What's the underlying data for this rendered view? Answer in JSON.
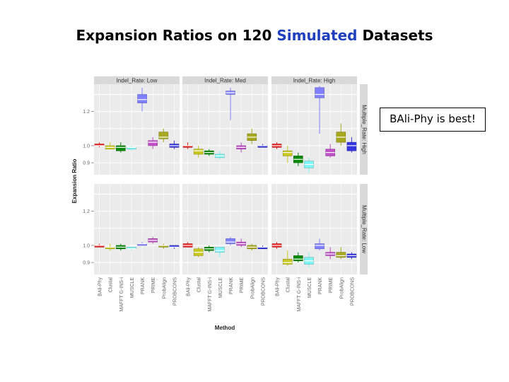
{
  "slide": {
    "title_pre": "Expansion Ratios on 120 ",
    "title_highlight": "Simulated",
    "title_post": " Datasets",
    "highlight_color": "#1f3fbf",
    "callout": "BAli-Phy is best!"
  },
  "chart_data": {
    "type": "box",
    "xlabel": "Method",
    "ylabel": "Expansion Ratio",
    "ylim": [
      0.83,
      1.36
    ],
    "yticks": [
      0.9,
      1.0,
      1.2
    ],
    "ytick_labels": [
      "0.9",
      "1.0",
      "1.2"
    ],
    "methods": [
      "BAli-Phy",
      "Clustal",
      "MAFFT G-INS-i",
      "MUSCLE",
      "PRANK",
      "PRIME",
      "ProbAlign",
      "PROBCONS"
    ],
    "method_colors": [
      "#e81f1f",
      "#c8c820",
      "#0a8a0a",
      "#7ff5f5",
      "#8080ff",
      "#c050c8",
      "#a8a820",
      "#3535e0"
    ],
    "col_facets": [
      "Indel_Rate: Low",
      "Indel_Rate: Med",
      "Indel_Rate: High"
    ],
    "row_facets": [
      "Multiple_Rate: High",
      "Multiple_Rate: Low"
    ],
    "panels": [
      [
        [
          {
            "lo": 0.99,
            "q1": 1.0,
            "med": 1.0,
            "q3": 1.01,
            "hi": 1.02
          },
          {
            "lo": 0.98,
            "q1": 0.98,
            "med": 0.99,
            "q3": 1.0,
            "hi": 1.02
          },
          {
            "lo": 0.96,
            "q1": 0.97,
            "med": 0.99,
            "q3": 1.0,
            "hi": 1.02
          },
          {
            "lo": 0.97,
            "q1": 0.98,
            "med": 0.99,
            "q3": 0.99,
            "hi": 1.0
          },
          {
            "lo": 1.2,
            "q1": 1.25,
            "med": 1.27,
            "q3": 1.3,
            "hi": 1.34
          },
          {
            "lo": 0.98,
            "q1": 1.0,
            "med": 1.02,
            "q3": 1.03,
            "hi": 1.05
          },
          {
            "lo": 1.02,
            "q1": 1.04,
            "med": 1.05,
            "q3": 1.08,
            "hi": 1.1
          },
          {
            "lo": 0.98,
            "q1": 0.99,
            "med": 1.0,
            "q3": 1.01,
            "hi": 1.03
          }
        ],
        [
          {
            "lo": 0.98,
            "q1": 0.99,
            "med": 1.0,
            "q3": 1.0,
            "hi": 1.02
          },
          {
            "lo": 0.93,
            "q1": 0.95,
            "med": 0.97,
            "q3": 0.98,
            "hi": 1.0
          },
          {
            "lo": 0.94,
            "q1": 0.95,
            "med": 0.96,
            "q3": 0.97,
            "hi": 0.98
          },
          {
            "lo": 0.92,
            "q1": 0.93,
            "med": 0.94,
            "q3": 0.95,
            "hi": 0.97
          },
          {
            "lo": 1.15,
            "q1": 1.3,
            "med": 1.31,
            "q3": 1.32,
            "hi": 1.34
          },
          {
            "lo": 0.96,
            "q1": 0.98,
            "med": 0.99,
            "q3": 1.0,
            "hi": 1.02
          },
          {
            "lo": 1.01,
            "q1": 1.03,
            "med": 1.05,
            "q3": 1.07,
            "hi": 1.1
          },
          {
            "lo": 0.99,
            "q1": 0.99,
            "med": 1.0,
            "q3": 1.0,
            "hi": 1.01
          }
        ],
        [
          {
            "lo": 0.98,
            "q1": 0.99,
            "med": 1.0,
            "q3": 1.01,
            "hi": 1.02
          },
          {
            "lo": 0.9,
            "q1": 0.94,
            "med": 0.96,
            "q3": 0.97,
            "hi": 1.0
          },
          {
            "lo": 0.88,
            "q1": 0.9,
            "med": 0.92,
            "q3": 0.94,
            "hi": 0.96
          },
          {
            "lo": 0.84,
            "q1": 0.87,
            "med": 0.89,
            "q3": 0.91,
            "hi": 0.93
          },
          {
            "lo": 1.07,
            "q1": 1.28,
            "med": 1.3,
            "q3": 1.34,
            "hi": 1.35
          },
          {
            "lo": 0.93,
            "q1": 0.94,
            "med": 0.96,
            "q3": 0.98,
            "hi": 1.01
          },
          {
            "lo": 1.0,
            "q1": 1.02,
            "med": 1.05,
            "q3": 1.08,
            "hi": 1.13
          },
          {
            "lo": 0.96,
            "q1": 0.97,
            "med": 1.0,
            "q3": 1.02,
            "hi": 1.05
          }
        ]
      ],
      [
        [
          {
            "lo": 0.99,
            "q1": 0.99,
            "med": 1.0,
            "q3": 1.0,
            "hi": 1.01
          },
          {
            "lo": 0.97,
            "q1": 0.98,
            "med": 0.99,
            "q3": 0.99,
            "hi": 1.01
          },
          {
            "lo": 0.97,
            "q1": 0.98,
            "med": 0.99,
            "q3": 1.0,
            "hi": 1.01
          },
          {
            "lo": 0.97,
            "q1": 0.98,
            "med": 0.98,
            "q3": 0.99,
            "hi": 0.99
          },
          {
            "lo": 1.0,
            "q1": 1.0,
            "med": 1.01,
            "q3": 1.01,
            "hi": 1.02
          },
          {
            "lo": 1.01,
            "q1": 1.02,
            "med": 1.03,
            "q3": 1.04,
            "hi": 1.05
          },
          {
            "lo": 0.98,
            "q1": 0.99,
            "med": 1.0,
            "q3": 1.0,
            "hi": 1.01
          },
          {
            "lo": 0.98,
            "q1": 0.99,
            "med": 0.99,
            "q3": 1.0,
            "hi": 1.0
          }
        ],
        [
          {
            "lo": 0.99,
            "q1": 0.99,
            "med": 1.0,
            "q3": 1.01,
            "hi": 1.02
          },
          {
            "lo": 0.93,
            "q1": 0.94,
            "med": 0.96,
            "q3": 0.98,
            "hi": 0.99
          },
          {
            "lo": 0.96,
            "q1": 0.97,
            "med": 0.98,
            "q3": 0.99,
            "hi": 1.0
          },
          {
            "lo": 0.93,
            "q1": 0.96,
            "med": 0.97,
            "q3": 0.99,
            "hi": 0.99
          },
          {
            "lo": 1.0,
            "q1": 1.01,
            "med": 1.02,
            "q3": 1.04,
            "hi": 1.05
          },
          {
            "lo": 0.99,
            "q1": 1.0,
            "med": 1.01,
            "q3": 1.02,
            "hi": 1.04
          },
          {
            "lo": 0.97,
            "q1": 0.98,
            "med": 0.99,
            "q3": 1.0,
            "hi": 1.01
          },
          {
            "lo": 0.98,
            "q1": 0.98,
            "med": 0.99,
            "q3": 0.99,
            "hi": 1.0
          }
        ],
        [
          {
            "lo": 0.98,
            "q1": 0.99,
            "med": 1.0,
            "q3": 1.01,
            "hi": 1.02
          },
          {
            "lo": 0.88,
            "q1": 0.89,
            "med": 0.9,
            "q3": 0.92,
            "hi": 0.97
          },
          {
            "lo": 0.9,
            "q1": 0.91,
            "med": 0.92,
            "q3": 0.94,
            "hi": 0.96
          },
          {
            "lo": 0.87,
            "q1": 0.89,
            "med": 0.91,
            "q3": 0.93,
            "hi": 0.96
          },
          {
            "lo": 0.97,
            "q1": 0.98,
            "med": 1.0,
            "q3": 1.01,
            "hi": 1.04
          },
          {
            "lo": 0.92,
            "q1": 0.94,
            "med": 0.95,
            "q3": 0.96,
            "hi": 0.99
          },
          {
            "lo": 0.92,
            "q1": 0.93,
            "med": 0.94,
            "q3": 0.96,
            "hi": 0.99
          },
          {
            "lo": 0.92,
            "q1": 0.93,
            "med": 0.94,
            "q3": 0.95,
            "hi": 0.96
          }
        ]
      ]
    ]
  }
}
